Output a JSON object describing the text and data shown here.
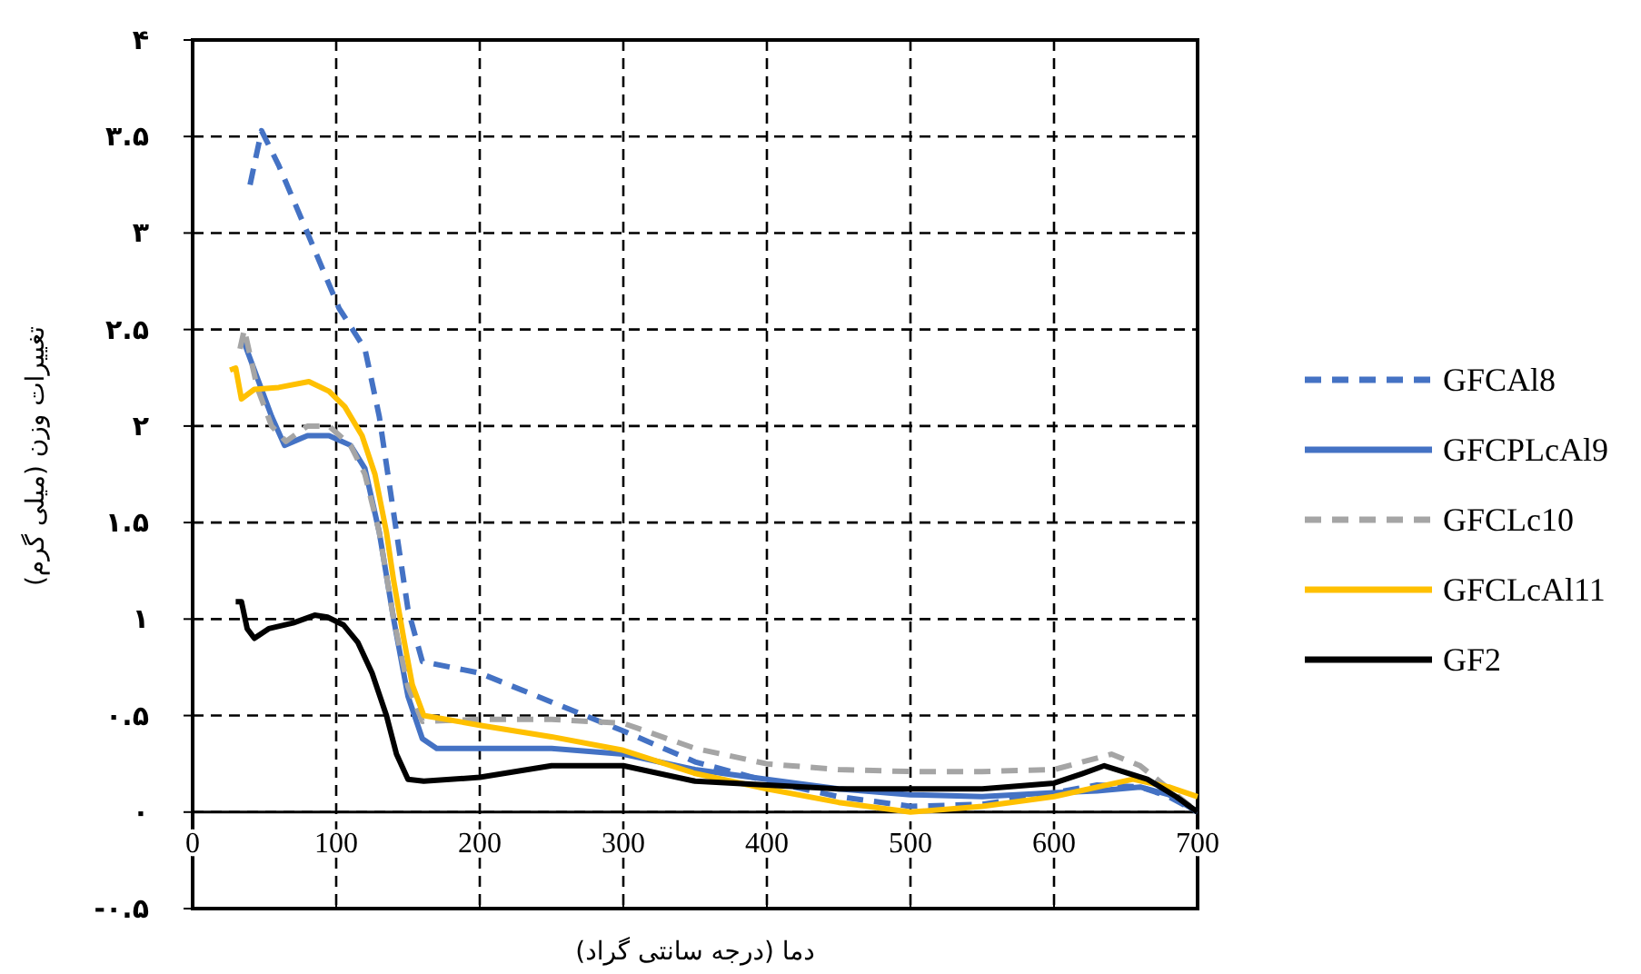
{
  "chart_data": {
    "type": "line",
    "xlabel": "دما (درجه سانتی گراد)",
    "ylabel": "تغییرات وزن (میلی گرم)",
    "xlim": [
      0,
      700
    ],
    "xticks": [
      0,
      100,
      200,
      300,
      400,
      500,
      600,
      700
    ],
    "ylim": [
      -0.5,
      4
    ],
    "yticks": [
      {
        "value": -0.5,
        "label": "-۰.۵"
      },
      {
        "value": 0,
        "label": "۰"
      },
      {
        "value": 0.5,
        "label": "۰.۵"
      },
      {
        "value": 1,
        "label": "۱"
      },
      {
        "value": 1.5,
        "label": "۱.۵"
      },
      {
        "value": 2,
        "label": "۲"
      },
      {
        "value": 2.5,
        "label": "۲.۵"
      },
      {
        "value": 3,
        "label": "۳"
      },
      {
        "value": 3.5,
        "label": "۳.۵"
      },
      {
        "value": 4,
        "label": "۴"
      }
    ],
    "grid": true,
    "legend": "right",
    "series": [
      {
        "name": "GFCAl8",
        "color": "#4472c4",
        "line_style": "dashed",
        "x": [
          40,
          48,
          60,
          80,
          102,
          120,
          130,
          140,
          150,
          160,
          200,
          250,
          300,
          350,
          400,
          450,
          500,
          550,
          600,
          630,
          660,
          680,
          700
        ],
        "values": [
          3.25,
          3.53,
          3.35,
          3.0,
          2.61,
          2.4,
          2.05,
          1.55,
          1.05,
          0.78,
          0.72,
          0.57,
          0.42,
          0.26,
          0.16,
          0.08,
          0.03,
          0.04,
          0.1,
          0.14,
          0.13,
          0.08,
          0
        ]
      },
      {
        "name": "GFCPLcAl9",
        "color": "#4472c4",
        "line_style": "solid",
        "x": [
          35,
          45,
          55,
          64,
          80,
          95,
          110,
          120,
          130,
          140,
          150,
          160,
          170,
          250,
          300,
          350,
          400,
          450,
          500,
          550,
          600,
          630,
          660,
          680,
          700
        ],
        "values": [
          2.45,
          2.25,
          2.05,
          1.9,
          1.95,
          1.95,
          1.9,
          1.78,
          1.45,
          1.0,
          0.6,
          0.38,
          0.33,
          0.33,
          0.3,
          0.22,
          0.17,
          0.12,
          0.09,
          0.08,
          0.1,
          0.11,
          0.13,
          0.09,
          0
        ]
      },
      {
        "name": "GFCLc10",
        "color": "#a5a5a5",
        "line_style": "dashed",
        "x": [
          33,
          36,
          45,
          55,
          65,
          80,
          95,
          110,
          120,
          130,
          140,
          150,
          160,
          200,
          250,
          300,
          350,
          400,
          450,
          500,
          550,
          600,
          640,
          660,
          680,
          700
        ],
        "values": [
          2.4,
          2.5,
          2.2,
          2.0,
          1.92,
          2.0,
          2.0,
          1.9,
          1.75,
          1.45,
          1.0,
          0.65,
          0.47,
          0.48,
          0.48,
          0.46,
          0.33,
          0.25,
          0.22,
          0.21,
          0.21,
          0.22,
          0.3,
          0.24,
          0.12,
          0
        ]
      },
      {
        "name": "GFCLcAl11",
        "color": "#ffc000",
        "line_style": "solid",
        "x": [
          26,
          30,
          34,
          43,
          60,
          81,
          95,
          106,
          118,
          127,
          135,
          140,
          147,
          153,
          161,
          200,
          250,
          300,
          350,
          400,
          450,
          500,
          550,
          600,
          655,
          680,
          700
        ],
        "values": [
          2.29,
          2.3,
          2.14,
          2.19,
          2.2,
          2.23,
          2.18,
          2.1,
          1.95,
          1.75,
          1.45,
          1.2,
          0.9,
          0.66,
          0.5,
          0.45,
          0.39,
          0.32,
          0.2,
          0.12,
          0.05,
          0.0,
          0.03,
          0.08,
          0.17,
          0.13,
          0.08
        ]
      },
      {
        "name": "GF2",
        "color": "#000000",
        "line_style": "solid",
        "x": [
          30,
          34,
          38,
          43,
          53,
          70,
          85,
          94,
          105,
          115,
          125,
          135,
          142,
          150,
          161,
          200,
          250,
          300,
          350,
          400,
          450,
          500,
          550,
          600,
          620,
          635,
          665,
          685,
          700
        ],
        "values": [
          1.09,
          1.09,
          0.95,
          0.9,
          0.95,
          0.98,
          1.02,
          1.01,
          0.97,
          0.88,
          0.72,
          0.5,
          0.3,
          0.17,
          0.16,
          0.18,
          0.24,
          0.24,
          0.16,
          0.14,
          0.12,
          0.12,
          0.12,
          0.15,
          0.2,
          0.24,
          0.17,
          0.08,
          0
        ]
      }
    ]
  }
}
